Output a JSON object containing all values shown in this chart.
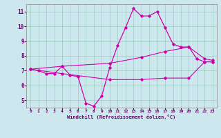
{
  "title": "",
  "xlabel": "Windchill (Refroidissement éolien,°C)",
  "bg_color": "#cce8ee",
  "line_color": "#cc00aa",
  "grid_color": "#99ccbb",
  "spine_color": "#888888",
  "tick_color": "#660066",
  "xlim": [
    -0.5,
    23.5
  ],
  "ylim": [
    4.5,
    11.5
  ],
  "xticks": [
    0,
    1,
    2,
    3,
    4,
    5,
    6,
    7,
    8,
    9,
    10,
    11,
    12,
    13,
    14,
    15,
    16,
    17,
    18,
    19,
    20,
    21,
    22,
    23
  ],
  "yticks": [
    5,
    6,
    7,
    8,
    9,
    10,
    11
  ],
  "line1_x": [
    0,
    1,
    2,
    3,
    4,
    5,
    6,
    7,
    8,
    9,
    10,
    11,
    12,
    13,
    14,
    15,
    16,
    17,
    18,
    19,
    20,
    21,
    22,
    23
  ],
  "line1_y": [
    7.1,
    7.0,
    6.8,
    6.8,
    7.3,
    6.7,
    6.6,
    4.8,
    4.6,
    5.3,
    7.2,
    8.7,
    9.9,
    11.2,
    10.7,
    10.7,
    11.0,
    9.9,
    8.8,
    8.6,
    8.6,
    7.8,
    7.6,
    7.6
  ],
  "line2_x": [
    0,
    4,
    10,
    14,
    17,
    20,
    22,
    23
  ],
  "line2_y": [
    7.1,
    7.3,
    7.5,
    7.9,
    8.3,
    8.6,
    7.8,
    7.7
  ],
  "line3_x": [
    0,
    4,
    10,
    14,
    17,
    20,
    22,
    23
  ],
  "line3_y": [
    7.1,
    6.8,
    6.4,
    6.4,
    6.5,
    6.5,
    7.6,
    7.6
  ]
}
